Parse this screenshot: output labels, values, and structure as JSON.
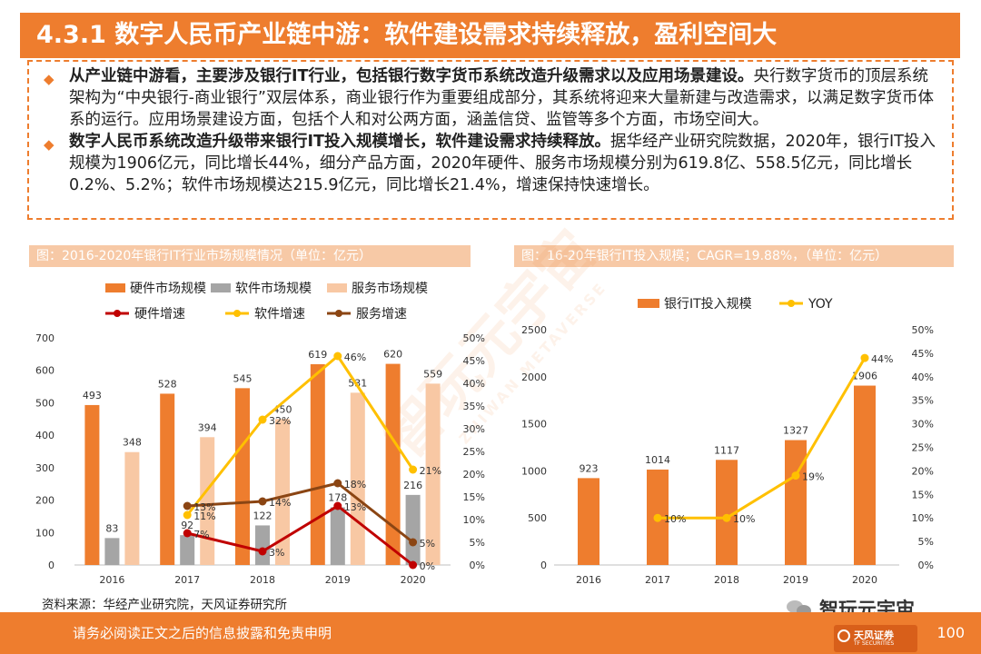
{
  "title": "4.3.1 数字人民币产业链中游：软件建设需求持续释放，盈利空间大",
  "bullets": [
    {
      "bold": "从产业链中游看，主要涉及银行IT行业，包括银行数字货币系统改造升级需求以及应用场景建设。",
      "text": "央行数字货币的顶层系统架构为“中央银行-商业银行”双层体系，商业银行作为重要组成部分，其系统将迎来大量新建与改造需求，以满足数字货币体系的运行。应用场景建设方面，包括个人和对公两方面，涵盖信贷、监管等多个方面，市场空间大。"
    },
    {
      "bold": "数字人民币系统改造升级带来银行IT投入规模增长，软件建设需求持续释放。",
      "text": "据华经产业研究院数据，2020年，银行IT投入规模为1906亿元，同比增长44%，细分产品方面，2020年硬件、服务市场规模分别为619.8亿、558.5亿元，同比增长0.2%、5.2%；软件市场规模达215.9亿元，同比增长21.4%，增速保持快速增长。"
    }
  ],
  "figure_left_title": "图：2016-2020年银行IT行业市场规模情况（单位：亿元）",
  "figure_right_title": "图：16-20年银行IT投入规模；CAGR=19.88%，（单位：亿元）",
  "source": "资料来源：华经产业研究院，天风证券研究所",
  "footer": "请务必阅读正文之后的信息披露和免责申明",
  "page_number": "100",
  "wechat_name": "智玩元宇宙",
  "logo_text": "天风证券",
  "logo_subtext": "TF SECURITIES",
  "watermark_text": "智玩元宇宙",
  "watermark_subtext": "ZHIWAN METAVERSE",
  "colors": {
    "accent": "#ee7d2e",
    "header_bg": "#f7c9a6",
    "hardware": "#ee7d2e",
    "software": "#a5a5a5",
    "services": "#f8c8a4",
    "hw_growth": "#c00000",
    "sw_growth": "#ffc000",
    "svc_growth": "#8b4513"
  },
  "chart_data": [
    {
      "type": "bar",
      "title": "2016-2020年银行IT行业市场规模情况（单位：亿元）",
      "categories": [
        "2016",
        "2017",
        "2018",
        "2019",
        "2020"
      ],
      "series": [
        {
          "name": "硬件市场规模",
          "values": [
            493,
            528,
            545,
            619,
            620
          ],
          "labels": [
            "493",
            "528",
            "545",
            "619",
            "620"
          ]
        },
        {
          "name": "软件市场规模",
          "values": [
            83,
            92,
            122,
            178,
            216
          ],
          "labels": [
            "83",
            "92",
            "122",
            "178",
            "216"
          ]
        },
        {
          "name": "服务市场规模",
          "values": [
            348,
            394,
            450,
            531,
            559
          ],
          "labels": [
            "348",
            "394",
            "450",
            "531",
            "559"
          ]
        }
      ],
      "line_series": [
        {
          "name": "硬件增速",
          "values": [
            null,
            7,
            3,
            13,
            0
          ],
          "labels": [
            "",
            "7%",
            "3%",
            "13%",
            "0%"
          ]
        },
        {
          "name": "软件增速",
          "values": [
            null,
            11,
            32,
            46,
            21
          ],
          "labels": [
            "",
            "11%",
            "32%",
            "46%",
            "21%"
          ]
        },
        {
          "name": "服务增速",
          "values": [
            null,
            13,
            14,
            18,
            5
          ],
          "labels": [
            "",
            "13%",
            "14%",
            "18%",
            "5%"
          ]
        }
      ],
      "left_axis": {
        "min": 0,
        "max": 700,
        "ticks": [
          "0",
          "100",
          "200",
          "300",
          "400",
          "500",
          "600",
          "700"
        ]
      },
      "right_axis": {
        "min": 0,
        "max": 50,
        "ticks": [
          "0%",
          "5%",
          "10%",
          "15%",
          "20%",
          "25%",
          "30%",
          "35%",
          "40%",
          "45%",
          "50%"
        ]
      },
      "legend": "top"
    },
    {
      "type": "bar",
      "title": "16-20年银行IT投入规模；CAGR=19.88%，（单位：亿元）",
      "categories": [
        "2016",
        "2017",
        "2018",
        "2019",
        "2020"
      ],
      "series": [
        {
          "name": "银行IT投入规模",
          "values": [
            923,
            1014,
            1117,
            1327,
            1906
          ],
          "labels": [
            "923",
            "1014",
            "1117",
            "1327",
            "1906"
          ]
        }
      ],
      "line_series": [
        {
          "name": "YOY",
          "values": [
            null,
            10,
            10,
            19,
            44
          ],
          "labels": [
            "",
            "10%",
            "10%",
            "19%",
            "44%"
          ]
        }
      ],
      "left_axis": {
        "min": 0,
        "max": 2500,
        "ticks": [
          "0",
          "500",
          "1000",
          "1500",
          "2000",
          "2500"
        ]
      },
      "right_axis": {
        "min": 0,
        "max": 50,
        "ticks": [
          "0%",
          "5%",
          "10%",
          "15%",
          "20%",
          "25%",
          "30%",
          "35%",
          "40%",
          "45%",
          "50%"
        ]
      },
      "legend": "top"
    }
  ]
}
